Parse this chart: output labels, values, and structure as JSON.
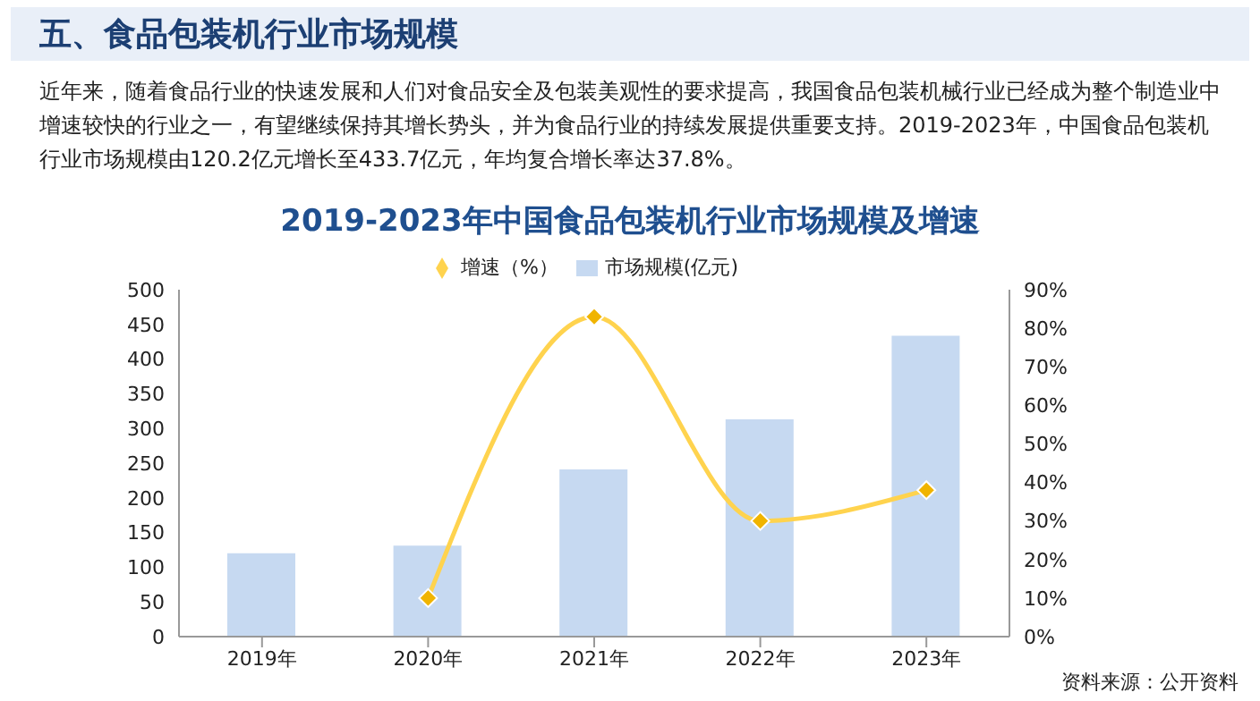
{
  "chart_data": {
    "type": "bar",
    "title": "2019-2023年中国食品包装机行业市场规模及增速",
    "annotations": [
      "五、食品包装机行业市场规模",
      "近年来，随着食品行业的快速发展和人们对食品安全及包装美观性的要求提高，我国食品包装机械行业已经成为整个制造业中增速较快的行业之一，有望继续保持其增长势头，并为食品行业的持续发展提供重要支持。2019-2023年，中国食品包装机行业市场规模由120.2亿元增长至433.7亿元，年均复合增长率达37.8%。",
      "资料来源：公开资料"
    ],
    "categories": [
      "2019年",
      "2020年",
      "2021年",
      "2022年",
      "2023年"
    ],
    "series": [
      {
        "name": "市场规模(亿元)",
        "color": "#c6d9f1",
        "values": [
          120.2,
          131,
          241,
          313,
          433.7
        ]
      },
      {
        "name": "增速（%）",
        "type": "line",
        "axis": "y2",
        "color": "#ffd34e",
        "marker": "diamond",
        "values": [
          null,
          10,
          83,
          30,
          38
        ]
      }
    ],
    "ylim": [
      0,
      500
    ],
    "yticks": [
      0,
      50,
      100,
      150,
      200,
      250,
      300,
      350,
      400,
      450,
      500
    ],
    "y2lim": [
      0,
      90
    ],
    "y2ticks": [
      {
        "value": 0,
        "label": "0%"
      },
      {
        "value": 10,
        "label": "10%"
      },
      {
        "value": 20,
        "label": "20%"
      },
      {
        "value": 30,
        "label": "30%"
      },
      {
        "value": 40,
        "label": "40%"
      },
      {
        "value": 50,
        "label": "50%"
      },
      {
        "value": 60,
        "label": "60%"
      },
      {
        "value": 70,
        "label": "70%"
      },
      {
        "value": 80,
        "label": "80%"
      },
      {
        "value": 90,
        "label": "90%"
      }
    ],
    "grid": false,
    "legend": "top"
  }
}
